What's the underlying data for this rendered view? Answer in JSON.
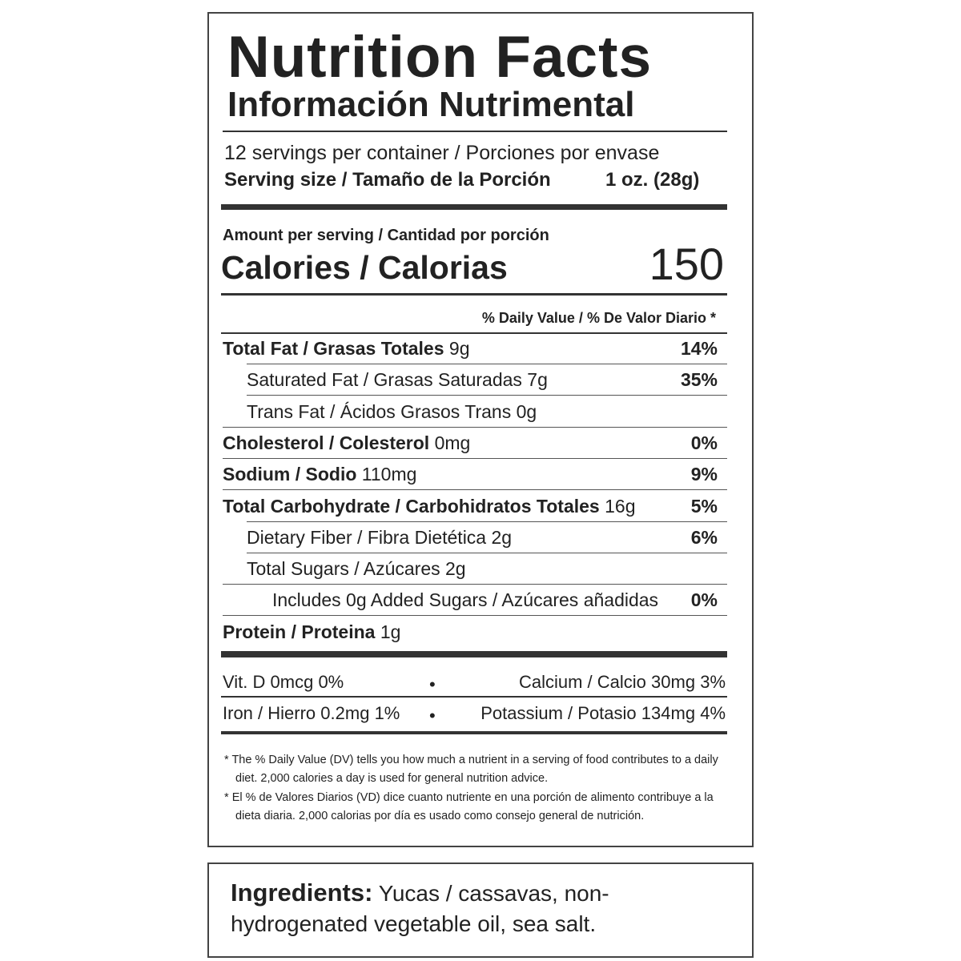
{
  "header": {
    "title": "Nutrition Facts",
    "subtitle": "Información Nutrimental"
  },
  "servings": {
    "per_container": "12 servings per container / Porciones por envase",
    "size_label": "Serving size / Tamaño de la Porción",
    "size_value": "1 oz. (28g)"
  },
  "calories": {
    "amount_label": "Amount per serving / Cantidad por porción",
    "label": "Calories / Calorias",
    "value": "150"
  },
  "dv_header": "% Daily Value / % De Valor Diario *",
  "nutrients": [
    {
      "name": "Total Fat / Grasas Totales",
      "amount": "9g",
      "dv": "14%"
    },
    {
      "name": "Saturated Fat / Grasas Saturadas",
      "amount": "7g",
      "dv": "35%"
    },
    {
      "name": "Trans Fat / Ácidos Grasos Trans",
      "amount": "0g"
    },
    {
      "name": "Cholesterol / Colesterol",
      "amount": "0mg",
      "dv": "0%"
    },
    {
      "name": "Sodium / Sodio",
      "amount": "110mg",
      "dv": "9%"
    },
    {
      "name": "Total Carbohydrate / Carbohidratos Totales",
      "amount": "16g",
      "dv": "5%"
    },
    {
      "name": "Dietary Fiber / Fibra Dietética",
      "amount": "2g",
      "dv": "6%"
    },
    {
      "name": "Total Sugars / Azúcares",
      "amount": "2g"
    },
    {
      "name": "Includes 0g Added Sugars / Azúcares añadidas",
      "dv": "0%"
    },
    {
      "name": "Protein / Proteina",
      "amount": "1g"
    }
  ],
  "vitamins": [
    {
      "name": "Vit. D",
      "amount": "0mcg",
      "dv": "0%"
    },
    {
      "name": "Calcium / Calcio",
      "amount": "30mg",
      "dv": "3%"
    },
    {
      "name": "Iron / Hierro",
      "amount": "0.2mg",
      "dv": "1%"
    },
    {
      "name": "Potassium / Potasio",
      "amount": "134mg",
      "dv": "4%"
    }
  ],
  "footnotes": [
    "The % Daily Value (DV) tells you how much a nutrient in a serving of food contributes to a daily diet. 2,000 calories a day is used for general nutrition advice.",
    "El % de Valores Diarios (VD) dice cuanto nutriente en una porción de alimento contribuye a la dieta diaria. 2,000 calorias por día es usado como consejo general de nutrición."
  ],
  "footnote_marker": "*",
  "ingredients": {
    "label": "Ingredients:",
    "text": "Yucas / cassavas, non-hydrogenated vegetable oil, sea salt."
  }
}
